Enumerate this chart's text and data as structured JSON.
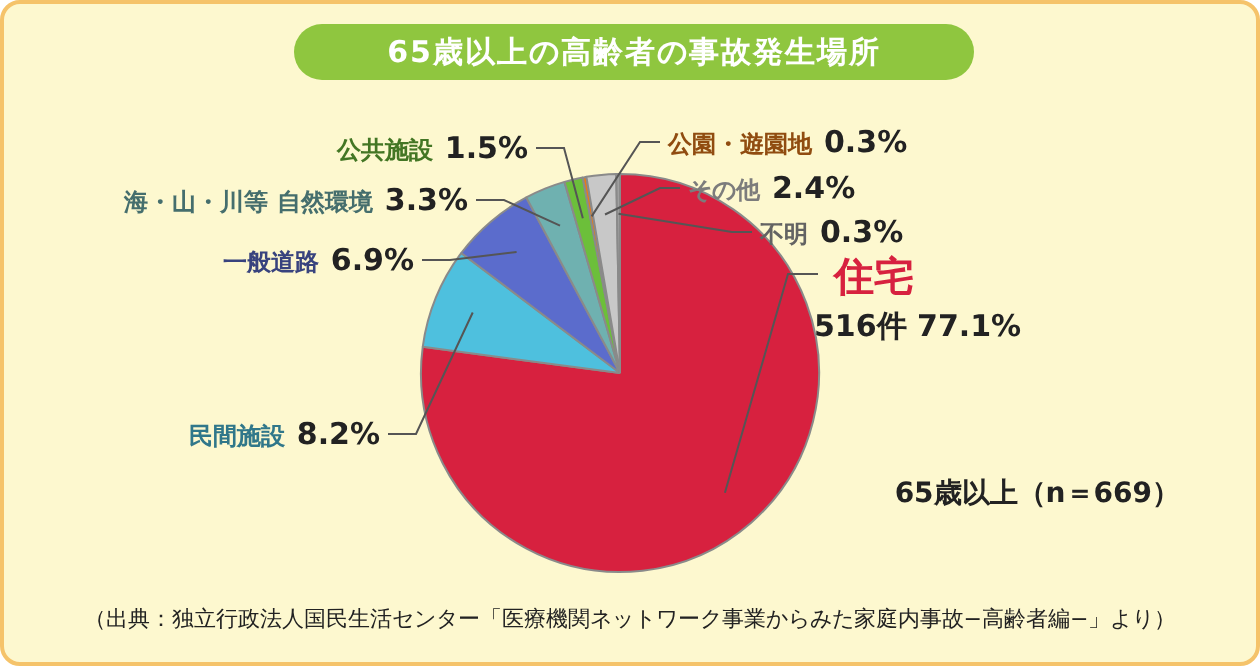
{
  "chart_data": {
    "type": "pie",
    "title": "65歳以上の高齢者の事故発生場所",
    "categories": [
      "住宅",
      "民間施設",
      "一般道路",
      "海・山・川等 自然環境",
      "公共施設",
      "公園・遊園地",
      "その他",
      "不明"
    ],
    "values": [
      77.1,
      8.2,
      6.9,
      3.3,
      1.5,
      0.3,
      2.4,
      0.3
    ],
    "value_labels": [
      "516件 77.1%",
      "8.2%",
      "6.9%",
      "3.3%",
      "1.5%",
      "0.3%",
      "2.4%",
      "0.3%"
    ],
    "colors": [
      "#d7213f",
      "#4ec0de",
      "#5b6ccc",
      "#6fb1b0",
      "#6cbf3a",
      "#e87a1a",
      "#c8c8c8",
      "#a0a0a0"
    ],
    "annotations": [
      "65歳以上（n＝669）",
      "（出典：独立行政法人国民生活センター「医療機関ネットワーク事業からみた家庭内事故−高齢者編−」より）"
    ],
    "legend": false
  }
}
